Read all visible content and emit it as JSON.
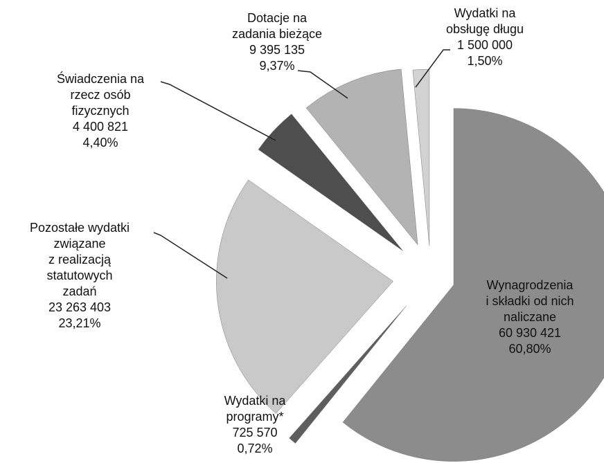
{
  "chart_data": {
    "type": "pie",
    "categories": [
      [
        "Wynagrodzenia",
        "i składki od nich",
        "naliczane"
      ],
      [
        "Wydatki na",
        "programy*"
      ],
      [
        "Pozostałe wydatki",
        "związane",
        "z realizacją",
        "statutowych",
        "zadań"
      ],
      [
        "Świadczenia na",
        "rzecz osób",
        "fizycznych"
      ],
      [
        "Dotacje na",
        "zadania bieżące"
      ],
      [
        "Wydatki na",
        "obsługę długu"
      ]
    ],
    "values": [
      60930421,
      725570,
      23263403,
      4400821,
      9395135,
      1500000
    ],
    "value_labels": [
      "60 930 421",
      "725 570",
      "23 263 403",
      "4 400 821",
      "9 395 135",
      "1 500 000"
    ],
    "percentages": [
      60.8,
      0.72,
      23.21,
      4.4,
      9.37,
      1.5
    ],
    "percentage_labels": [
      "60,80%",
      "0,72%",
      "23,21%",
      "4,40%",
      "9,37%",
      "1,50%"
    ],
    "colors": [
      "#8c8c8c",
      "#5e5e5e",
      "#c9c9c9",
      "#4e4e4e",
      "#b3b3b3",
      "#d2d2d2"
    ]
  }
}
